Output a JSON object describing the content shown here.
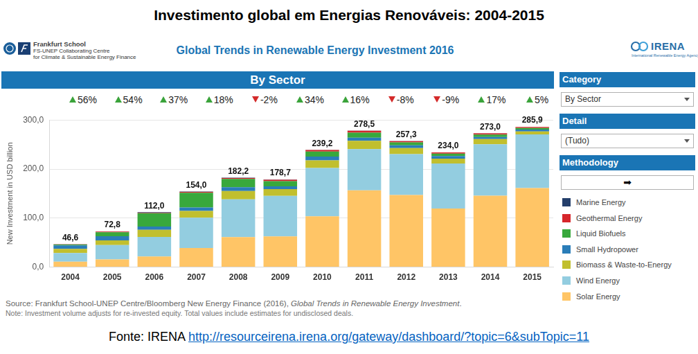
{
  "page": {
    "heading": "Investimento global em Energias Renováveis: 2004-2015",
    "logo_left": [
      "Frankfurt School",
      "FS-UNEP Collaborating Centre",
      "for Climate & Sustainable Energy Finance"
    ],
    "logo_right": [
      "IRENA",
      "International Renewable Energy Agency"
    ],
    "dashboard_title": "Global Trends in Renewable Energy Investment 2016",
    "panel_title": "By Sector",
    "sidebar": [
      {
        "header": "Category",
        "control": "By Sector"
      },
      {
        "header": "Detail",
        "control": "(Tudo)"
      },
      {
        "header": "Methodology",
        "control": "➡"
      }
    ],
    "source": {
      "prefix": "Source: Frankfurt School-UNEP Centre/Bloomberg New Energy Finance (2016), ",
      "italic": "Global Trends in Renewable Energy Investment",
      "suffix": "."
    },
    "note": "Note: Investment volume adjusts for re-invested equity. Total values include estimates for undisclosed deals.",
    "credit": {
      "text": "Fonte: IRENA",
      "link": "http://resourceirena.irena.org/gateway/dashboard/?topic=6&subTopic=11"
    }
  },
  "chart_data": {
    "type": "bar",
    "stacked": true,
    "grid": true,
    "legend": "right",
    "y_label": "New Investment in USD billion",
    "categories": [
      "2004",
      "2005",
      "2006",
      "2007",
      "2008",
      "2009",
      "2010",
      "2011",
      "2012",
      "2013",
      "2014",
      "2015"
    ],
    "ylim": [
      0,
      300
    ],
    "yticks": [
      {
        "value": 0,
        "label": "0,0"
      },
      {
        "value": 100,
        "label": "100,0"
      },
      {
        "value": 200,
        "label": "200,0"
      },
      {
        "value": 300,
        "label": "300,0"
      }
    ],
    "series": [
      {
        "name": "Solar Energy",
        "color": "#ffc566",
        "values": [
          11.2,
          15.8,
          21.7,
          38.9,
          61.1,
          62.5,
          103.5,
          156.5,
          147.0,
          119.5,
          145.6,
          161.0
        ]
      },
      {
        "name": "Wind Energy",
        "color": "#93cde0",
        "values": [
          17.7,
          29.2,
          39.8,
          61.9,
          77.1,
          82.6,
          98.7,
          84.1,
          83.2,
          91.9,
          104.9,
          109.7
        ]
      },
      {
        "name": "Biomass & Waste-to-Energy",
        "color": "#c1bf2e",
        "values": [
          8.2,
          9.5,
          14.4,
          13.9,
          16.9,
          13.8,
          15.5,
          17.1,
          12.4,
          9.9,
          10.6,
          6.0
        ]
      },
      {
        "name": "Small Hydropower",
        "color": "#2a7db8",
        "values": [
          7.2,
          8.6,
          6.8,
          6.8,
          7.7,
          5.7,
          7.6,
          6.1,
          5.6,
          5.1,
          4.4,
          3.9
        ]
      },
      {
        "name": "Liquid Biofuels",
        "color": "#38a83c",
        "values": [
          1.8,
          8.0,
          27.3,
          30.3,
          17.1,
          10.6,
          10.2,
          10.4,
          6.1,
          4.9,
          4.7,
          3.1
        ]
      },
      {
        "name": "Geothermal Energy",
        "color": "#d6262b",
        "values": [
          0.4,
          1.6,
          1.1,
          1.5,
          1.7,
          3.0,
          3.4,
          4.0,
          2.7,
          2.5,
          2.4,
          2.0
        ]
      },
      {
        "name": "Marine Energy",
        "color": "#243f6b",
        "values": [
          0.1,
          0.1,
          0.9,
          0.7,
          0.6,
          0.5,
          0.3,
          0.3,
          0.3,
          0.2,
          0.4,
          0.2
        ]
      }
    ],
    "totals": [
      46.6,
      72.8,
      112.0,
      154.0,
      182.2,
      178.7,
      239.2,
      278.5,
      257.3,
      234.0,
      273.0,
      285.9
    ],
    "total_labels": [
      "46,6",
      "72,8",
      "112,0",
      "154,0",
      "182,2",
      "178,7",
      "239,2",
      "278,5",
      "257,3",
      "234,0",
      "273,0",
      "285,9"
    ],
    "growth": {
      "values": [
        56,
        54,
        37,
        18,
        -2,
        34,
        16,
        -8,
        -9,
        17,
        5
      ],
      "labels": [
        "56%",
        "54%",
        "37%",
        "18%",
        "-2%",
        "34%",
        "16%",
        "-8%",
        "-9%",
        "17%",
        "5%"
      ]
    }
  }
}
